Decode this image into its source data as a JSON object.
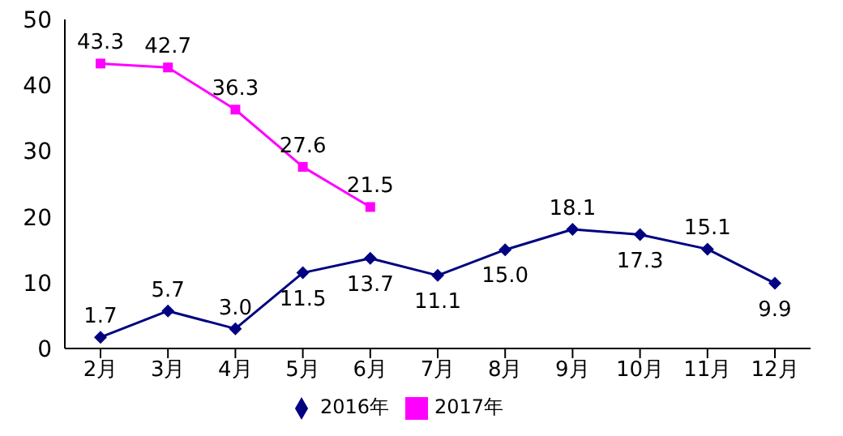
{
  "chart_data": {
    "type": "line",
    "categories": [
      "2月",
      "3月",
      "4月",
      "5月",
      "6月",
      "7月",
      "8月",
      "9月",
      "10月",
      "11月",
      "12月"
    ],
    "series": [
      {
        "name": "2016年",
        "color": "#000080",
        "marker": "diamond",
        "values": [
          1.7,
          5.7,
          3.0,
          11.5,
          13.7,
          11.1,
          15.0,
          18.1,
          17.3,
          15.1,
          9.9
        ],
        "value_labels": [
          "1.7",
          "5.7",
          "3.0",
          "11.5",
          "13.7",
          "11.1",
          "15.0",
          "18.1",
          "17.3",
          "15.1",
          "9.9"
        ]
      },
      {
        "name": "2017年",
        "color": "#ff00ff",
        "marker": "square",
        "values": [
          43.3,
          42.7,
          36.3,
          27.6,
          21.5,
          null,
          null,
          null,
          null,
          null,
          null
        ],
        "value_labels": [
          "43.3",
          "42.7",
          "36.3",
          "27.6",
          "21.5",
          null,
          null,
          null,
          null,
          null,
          null
        ]
      }
    ],
    "ylim": [
      0,
      50
    ],
    "yticks": [
      0,
      10,
      20,
      30,
      40,
      50
    ],
    "grid": false,
    "legend": "bottom"
  }
}
